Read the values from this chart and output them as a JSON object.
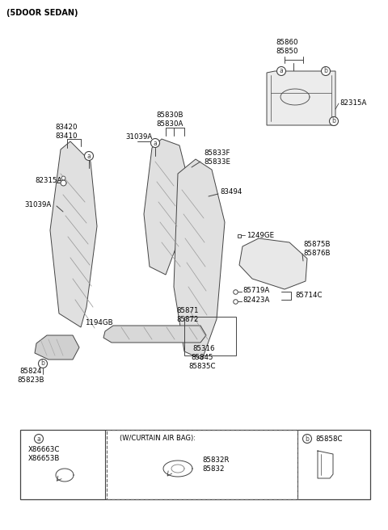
{
  "bg_color": "#ffffff",
  "line_color": "#444444",
  "fill_color": "#e8e8e8",
  "labels": {
    "title": "(5DOOR SEDAN)",
    "85860_85850": "85860\n85850",
    "82315A_r": "82315A",
    "83420_83410": "83420\n83410",
    "82315A_l": "82315A",
    "85830B_85830A": "85830B\n85830A",
    "85833F_85833E": "85833F\n85833E",
    "83494": "83494",
    "31039A_l": "31039A",
    "31039A_m": "31039A",
    "1249GE": "1249GE",
    "85875B_85876B": "85875B\n85876B",
    "85719A": "85719A",
    "82423A": "82423A",
    "85714C": "85714C",
    "85871_85872": "85871\n85872",
    "1194GB": "1194GB",
    "85316": "85316",
    "85845_85835C": "85845\n85835C",
    "85824_85823B": "85824\n85823B",
    "X86663C_X86653B": "X86663C\nX86653B",
    "wcurtain": "(W/CURTAIN AIR BAG):",
    "85832R_85832": "85832R\n85832",
    "85858C": "85858C"
  },
  "figsize": [
    4.8,
    6.56
  ],
  "dpi": 100
}
